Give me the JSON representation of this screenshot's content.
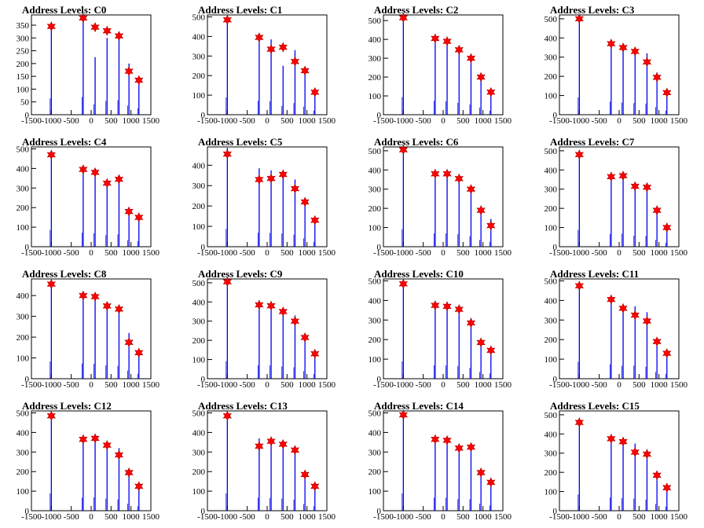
{
  "chart_data": [
    {
      "type": "bar",
      "title": "Address Levels: C0",
      "xlim": [
        -1500,
        1500
      ],
      "ylim": [
        0,
        390
      ],
      "yticks": [
        0,
        50,
        100,
        150,
        200,
        250,
        300,
        350
      ],
      "xticks": [
        -1500,
        -1000,
        -500,
        0,
        500,
        1000,
        1500
      ],
      "markers": {
        "x": [
          -1000,
          -200,
          100,
          400,
          700,
          950,
          1200
        ],
        "y": [
          345,
          378,
          342,
          328,
          308,
          170,
          135
        ]
      },
      "spikes": {
        "x": [
          -1000,
          -200,
          100,
          400,
          700,
          950,
          1200
        ],
        "values": [
          355,
          385,
          225,
          300,
          315,
          200,
          140
        ]
      }
    },
    {
      "type": "bar",
      "title": "Address Levels: C1",
      "xlim": [
        -1500,
        1500
      ],
      "ylim": [
        0,
        510
      ],
      "yticks": [
        0,
        100,
        200,
        300,
        400,
        500
      ],
      "xticks": [
        -1500,
        -1000,
        -500,
        0,
        500,
        1000,
        1500
      ],
      "markers": {
        "x": [
          -1000,
          -200,
          100,
          400,
          700,
          950,
          1200
        ],
        "y": [
          485,
          395,
          335,
          345,
          272,
          225,
          115
        ]
      },
      "spikes": {
        "x": [
          -1000,
          -200,
          100,
          400,
          700,
          950,
          1200
        ],
        "values": [
          490,
          395,
          385,
          250,
          330,
          230,
          120
        ]
      }
    },
    {
      "type": "bar",
      "title": "Address Levels: C2",
      "xlim": [
        -1500,
        1500
      ],
      "ylim": [
        0,
        530
      ],
      "yticks": [
        0,
        100,
        200,
        300,
        400,
        500
      ],
      "xticks": [
        -1500,
        -1000,
        -500,
        0,
        500,
        1000,
        1500
      ],
      "markers": {
        "x": [
          -1000,
          -200,
          100,
          400,
          700,
          950,
          1200
        ],
        "y": [
          515,
          405,
          390,
          345,
          300,
          200,
          120
        ]
      },
      "spikes": {
        "x": [
          -1000,
          -200,
          100,
          400,
          700,
          950,
          1200
        ],
        "values": [
          520,
          410,
          395,
          350,
          305,
          210,
          125
        ]
      }
    },
    {
      "type": "bar",
      "title": "Address Levels: C3",
      "xlim": [
        -1500,
        1500
      ],
      "ylim": [
        0,
        520
      ],
      "yticks": [
        0,
        100,
        200,
        300,
        400,
        500
      ],
      "xticks": [
        -1500,
        -1000,
        -500,
        0,
        500,
        1000,
        1500
      ],
      "markers": {
        "x": [
          -1000,
          -200,
          100,
          400,
          700,
          950,
          1200
        ],
        "y": [
          500,
          370,
          350,
          330,
          275,
          195,
          115
        ]
      },
      "spikes": {
        "x": [
          -1000,
          -200,
          100,
          400,
          700,
          950,
          1200
        ],
        "values": [
          505,
          380,
          355,
          335,
          320,
          220,
          120
        ]
      }
    },
    {
      "type": "bar",
      "title": "Address Levels: C4",
      "xlim": [
        -1500,
        1500
      ],
      "ylim": [
        0,
        510
      ],
      "yticks": [
        0,
        100,
        200,
        300,
        400,
        500
      ],
      "xticks": [
        -1500,
        -1000,
        -500,
        0,
        500,
        1000,
        1500
      ],
      "markers": {
        "x": [
          -1000,
          -200,
          100,
          400,
          700,
          950,
          1200
        ],
        "y": [
          470,
          395,
          380,
          325,
          345,
          180,
          150
        ]
      },
      "spikes": {
        "x": [
          -1000,
          -200,
          100,
          400,
          700,
          950,
          1200
        ],
        "values": [
          475,
          400,
          385,
          330,
          350,
          180,
          155
        ]
      }
    },
    {
      "type": "bar",
      "title": "Address Levels: C5",
      "xlim": [
        -1500,
        1500
      ],
      "ylim": [
        0,
        490
      ],
      "yticks": [
        0,
        100,
        200,
        300,
        400
      ],
      "xticks": [
        -1500,
        -1000,
        -500,
        0,
        500,
        1000,
        1500
      ],
      "markers": {
        "x": [
          -1000,
          -200,
          100,
          400,
          700,
          950,
          1200
        ],
        "y": [
          455,
          330,
          335,
          355,
          285,
          220,
          130
        ]
      },
      "spikes": {
        "x": [
          -1000,
          -200,
          100,
          400,
          700,
          950,
          1200
        ],
        "values": [
          485,
          385,
          375,
          360,
          330,
          225,
          135
        ]
      }
    },
    {
      "type": "bar",
      "title": "Address Levels: C6",
      "xlim": [
        -1500,
        1500
      ],
      "ylim": [
        0,
        520
      ],
      "yticks": [
        0,
        100,
        200,
        300,
        400,
        500
      ],
      "xticks": [
        -1500,
        -1000,
        -500,
        0,
        500,
        1000,
        1500
      ],
      "markers": {
        "x": [
          -1000,
          -200,
          100,
          400,
          700,
          950,
          1200
        ],
        "y": [
          505,
          380,
          380,
          355,
          300,
          190,
          110
        ]
      },
      "spikes": {
        "x": [
          -1000,
          -200,
          100,
          400,
          700,
          950,
          1200
        ],
        "values": [
          510,
          385,
          385,
          360,
          305,
          195,
          145
        ]
      }
    },
    {
      "type": "bar",
      "title": "Address Levels: C7",
      "xlim": [
        -1500,
        1500
      ],
      "ylim": [
        0,
        520
      ],
      "yticks": [
        0,
        100,
        200,
        300,
        400,
        500
      ],
      "xticks": [
        -1500,
        -1000,
        -500,
        0,
        500,
        1000,
        1500
      ],
      "markers": {
        "x": [
          -1000,
          -200,
          100,
          400,
          700,
          950,
          1200
        ],
        "y": [
          480,
          365,
          370,
          315,
          310,
          190,
          100
        ]
      },
      "spikes": {
        "x": [
          -1000,
          -200,
          100,
          400,
          700,
          950,
          1200
        ],
        "values": [
          485,
          370,
          375,
          320,
          315,
          195,
          115
        ]
      }
    },
    {
      "type": "bar",
      "title": "Address Levels: C8",
      "xlim": [
        -1500,
        1500
      ],
      "ylim": [
        0,
        480
      ],
      "yticks": [
        0,
        100,
        200,
        300,
        400
      ],
      "xticks": [
        -1500,
        -1000,
        -500,
        0,
        500,
        1000,
        1500
      ],
      "markers": {
        "x": [
          -1000,
          -200,
          100,
          400,
          700,
          950,
          1200
        ],
        "y": [
          455,
          400,
          395,
          350,
          335,
          175,
          125
        ]
      },
      "spikes": {
        "x": [
          -1000,
          -200,
          100,
          400,
          700,
          950,
          1200
        ],
        "values": [
          460,
          405,
          400,
          355,
          340,
          220,
          135
        ]
      }
    },
    {
      "type": "bar",
      "title": "Address Levels: C9",
      "xlim": [
        -1500,
        1500
      ],
      "ylim": [
        0,
        520
      ],
      "yticks": [
        0,
        100,
        200,
        300,
        400,
        500
      ],
      "xticks": [
        -1500,
        -1000,
        -500,
        0,
        500,
        1000,
        1500
      ],
      "markers": {
        "x": [
          -1000,
          -200,
          100,
          400,
          700,
          950,
          1200
        ],
        "y": [
          505,
          385,
          380,
          350,
          300,
          215,
          130
        ]
      },
      "spikes": {
        "x": [
          -1000,
          -200,
          100,
          400,
          700,
          950,
          1200
        ],
        "values": [
          510,
          390,
          385,
          355,
          330,
          220,
          135
        ]
      }
    },
    {
      "type": "bar",
      "title": "Address Levels: C10",
      "xlim": [
        -1500,
        1500
      ],
      "ylim": [
        0,
        510
      ],
      "yticks": [
        0,
        100,
        200,
        300,
        400,
        500
      ],
      "xticks": [
        -1500,
        -1000,
        -500,
        0,
        500,
        1000,
        1500
      ],
      "markers": {
        "x": [
          -1000,
          -200,
          100,
          400,
          700,
          950,
          1200
        ],
        "y": [
          485,
          375,
          370,
          355,
          285,
          185,
          145
        ]
      },
      "spikes": {
        "x": [
          -1000,
          -200,
          100,
          400,
          700,
          950,
          1200
        ],
        "values": [
          490,
          380,
          375,
          360,
          310,
          190,
          150
        ]
      }
    },
    {
      "type": "bar",
      "title": "Address Levels: C11",
      "xlim": [
        -1500,
        1500
      ],
      "ylim": [
        0,
        510
      ],
      "yticks": [
        0,
        100,
        200,
        300,
        400,
        500
      ],
      "xticks": [
        -1500,
        -1000,
        -500,
        0,
        500,
        1000,
        1500
      ],
      "markers": {
        "x": [
          -1000,
          -200,
          100,
          400,
          700,
          950,
          1200
        ],
        "y": [
          475,
          405,
          360,
          325,
          295,
          190,
          130
        ]
      },
      "spikes": {
        "x": [
          -1000,
          -200,
          100,
          400,
          700,
          950,
          1200
        ],
        "values": [
          480,
          410,
          365,
          370,
          340,
          195,
          135
        ]
      }
    },
    {
      "type": "bar",
      "title": "Address Levels: C12",
      "xlim": [
        -1500,
        1500
      ],
      "ylim": [
        0,
        510
      ],
      "yticks": [
        0,
        100,
        200,
        300,
        400,
        500
      ],
      "xticks": [
        -1500,
        -1000,
        -500,
        0,
        500,
        1000,
        1500
      ],
      "markers": {
        "x": [
          -1000,
          -200,
          100,
          400,
          700,
          950,
          1200
        ],
        "y": [
          485,
          365,
          370,
          335,
          285,
          195,
          125
        ]
      },
      "spikes": {
        "x": [
          -1000,
          -200,
          100,
          400,
          700,
          950,
          1200
        ],
        "values": [
          490,
          370,
          380,
          340,
          320,
          200,
          130
        ]
      }
    },
    {
      "type": "bar",
      "title": "Address Levels: C13",
      "xlim": [
        -1500,
        1500
      ],
      "ylim": [
        0,
        510
      ],
      "yticks": [
        0,
        100,
        200,
        300,
        400,
        500
      ],
      "xticks": [
        -1500,
        -1000,
        -500,
        0,
        500,
        1000,
        1500
      ],
      "markers": {
        "x": [
          -1000,
          -200,
          100,
          400,
          700,
          950,
          1200
        ],
        "y": [
          485,
          330,
          355,
          340,
          310,
          185,
          125
        ]
      },
      "spikes": {
        "x": [
          -1000,
          -200,
          100,
          400,
          700,
          950,
          1200
        ],
        "values": [
          490,
          370,
          360,
          345,
          315,
          190,
          130
        ]
      }
    },
    {
      "type": "bar",
      "title": "Address Levels: C14",
      "xlim": [
        -1500,
        1500
      ],
      "ylim": [
        0,
        510
      ],
      "yticks": [
        0,
        100,
        200,
        300,
        400,
        500
      ],
      "xticks": [
        -1500,
        -1000,
        -500,
        0,
        500,
        1000,
        1500
      ],
      "markers": {
        "x": [
          -1000,
          -200,
          100,
          400,
          700,
          950,
          1200
        ],
        "y": [
          490,
          365,
          360,
          320,
          325,
          195,
          145
        ]
      },
      "spikes": {
        "x": [
          -1000,
          -200,
          100,
          400,
          700,
          950,
          1200
        ],
        "values": [
          495,
          370,
          365,
          325,
          330,
          200,
          150
        ]
      }
    },
    {
      "type": "bar",
      "title": "Address Levels: C15",
      "xlim": [
        -1500,
        1500
      ],
      "ylim": [
        0,
        520
      ],
      "yticks": [
        0,
        100,
        200,
        300,
        400,
        500
      ],
      "xticks": [
        -1500,
        -1000,
        -500,
        0,
        500,
        1000,
        1500
      ],
      "markers": {
        "x": [
          -1000,
          -200,
          100,
          400,
          700,
          950,
          1200
        ],
        "y": [
          460,
          375,
          360,
          305,
          295,
          185,
          120
        ]
      },
      "spikes": {
        "x": [
          -1000,
          -200,
          100,
          400,
          700,
          950,
          1200
        ],
        "values": [
          470,
          380,
          365,
          350,
          320,
          195,
          125
        ]
      }
    }
  ],
  "colors": {
    "spike": "#0000ee",
    "marker_fill": "#ff0000",
    "marker_stroke": "#aa0000",
    "axis": "#000000"
  }
}
